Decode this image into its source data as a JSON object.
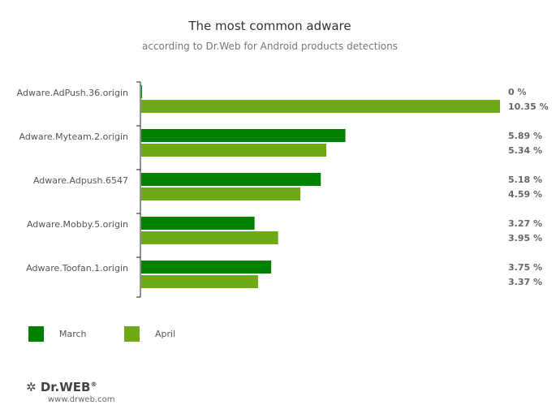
{
  "chart_data": {
    "type": "bar",
    "orientation": "horizontal",
    "title": "The most common adware",
    "subtitle": "according to Dr.Web for Android products detections",
    "categories": [
      "Adware.AdPush.36.origin",
      "Adware.Myteam.2.origin",
      "Adware.Adpush.6547",
      "Adware.Mobby.5.origin",
      "Adware.Toofan.1.origin"
    ],
    "series": [
      {
        "name": "March",
        "color": "#008000",
        "values": [
          0,
          5.89,
          5.18,
          3.27,
          3.75
        ],
        "labels": [
          "0 %",
          "5.89 %",
          "5.18 %",
          "3.27 %",
          "3.75 %"
        ]
      },
      {
        "name": "April",
        "color": "#6fa918",
        "values": [
          10.35,
          5.34,
          4.59,
          3.95,
          3.37
        ],
        "labels": [
          "10.35 %",
          "5.34 %",
          "4.59 %",
          "3.95 %",
          "3.37 %"
        ]
      }
    ],
    "xlim": [
      0,
      10.35
    ],
    "grid": false,
    "legend_position": "bottom-left"
  },
  "footer": {
    "brand": "Dr.WEB",
    "registered": "®",
    "url": "www.drweb.com"
  }
}
